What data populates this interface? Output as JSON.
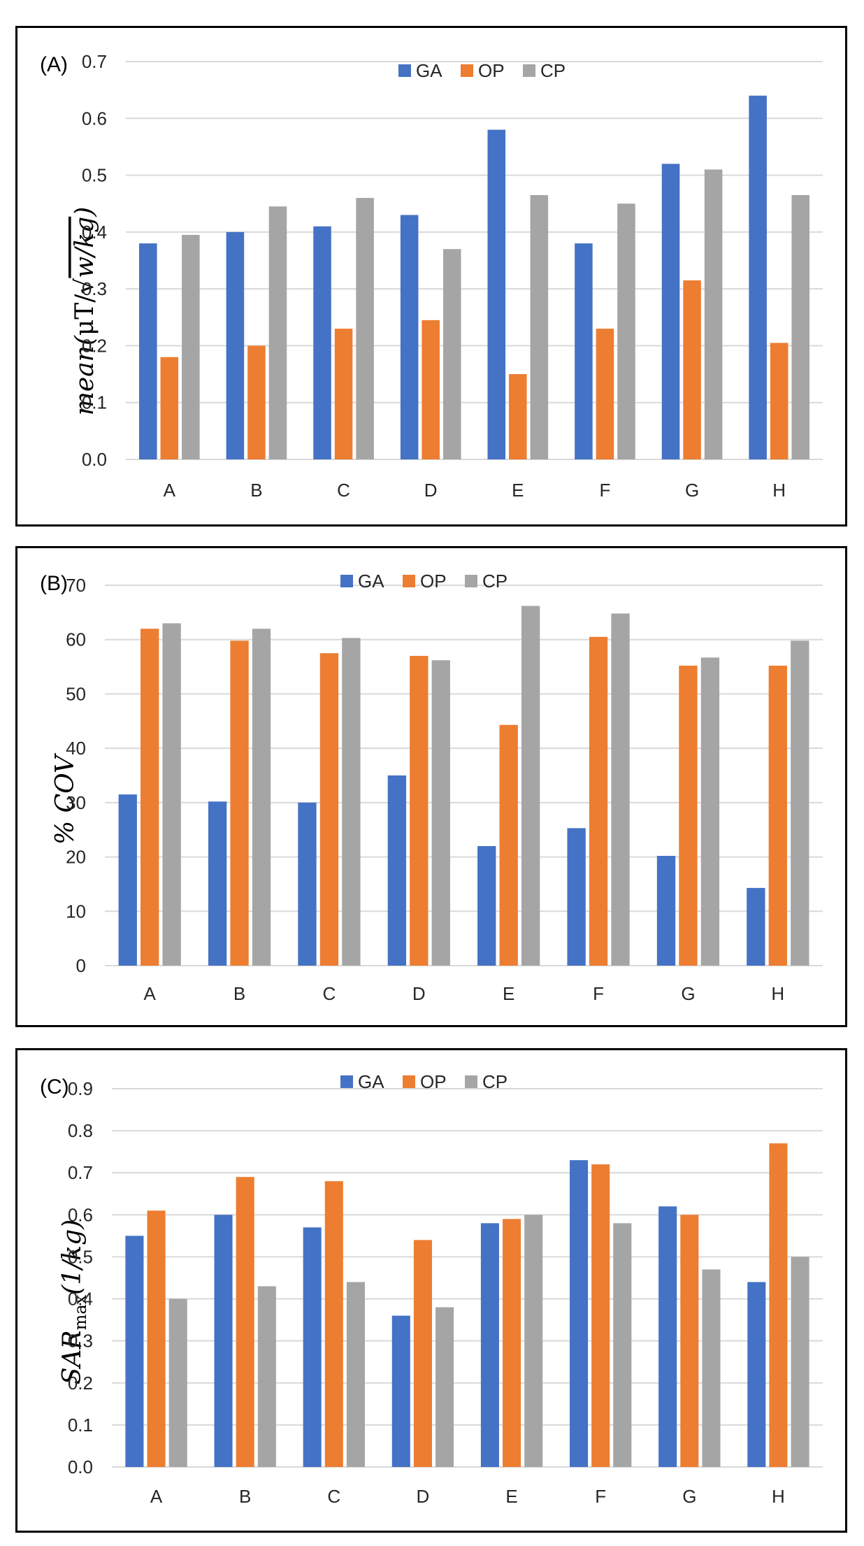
{
  "colors": {
    "GA": "#4472c4",
    "OP": "#ed7d31",
    "CP": "#a5a5a5"
  },
  "chart_data": [
    {
      "type": "bar",
      "panel_label": "(A)",
      "ylabel_prefix": "mean(",
      "ylabel_unit": "μT/",
      "ylabel_root": "w/kg",
      "ylabel_suffix": ")",
      "categories": [
        "A",
        "B",
        "C",
        "D",
        "E",
        "F",
        "G",
        "H"
      ],
      "series": [
        {
          "name": "GA",
          "values": [
            0.38,
            0.4,
            0.41,
            0.43,
            0.58,
            0.38,
            0.52,
            0.64
          ]
        },
        {
          "name": "OP",
          "values": [
            0.18,
            0.2,
            0.23,
            0.245,
            0.15,
            0.23,
            0.315,
            0.205
          ]
        },
        {
          "name": "CP",
          "values": [
            0.395,
            0.445,
            0.46,
            0.37,
            0.465,
            0.45,
            0.51,
            0.465
          ]
        }
      ],
      "ylim": [
        0,
        0.7
      ],
      "yticks": [
        "0.0",
        "0.1",
        "0.2",
        "0.3",
        "0.4",
        "0.5",
        "0.6",
        "0.7"
      ],
      "grid": true,
      "legend": "top"
    },
    {
      "type": "bar",
      "panel_label": "(B)",
      "ylabel": "% COV",
      "categories": [
        "A",
        "B",
        "C",
        "D",
        "E",
        "F",
        "G",
        "H"
      ],
      "series": [
        {
          "name": "GA",
          "values": [
            31.5,
            30.2,
            30,
            35,
            22,
            25.3,
            20.2,
            14.3
          ]
        },
        {
          "name": "OP",
          "values": [
            62,
            59.8,
            57.5,
            57,
            44.3,
            60.5,
            55.2,
            55.2
          ]
        },
        {
          "name": "CP",
          "values": [
            63,
            62,
            60.3,
            56.2,
            66.2,
            64.8,
            56.7,
            59.8
          ]
        }
      ],
      "ylim": [
        0,
        70
      ],
      "yticks": [
        "0",
        "10",
        "20",
        "30",
        "40",
        "50",
        "60",
        "70"
      ],
      "grid": true,
      "legend": "top"
    },
    {
      "type": "bar",
      "panel_label": "(C)",
      "ylabel_main": "SAR",
      "ylabel_sub": "max",
      "ylabel_tail": "(1/kg)",
      "categories": [
        "A",
        "B",
        "C",
        "D",
        "E",
        "F",
        "G",
        "H"
      ],
      "series": [
        {
          "name": "GA",
          "values": [
            0.55,
            0.6,
            0.57,
            0.36,
            0.58,
            0.73,
            0.62,
            0.44
          ]
        },
        {
          "name": "OP",
          "values": [
            0.61,
            0.69,
            0.68,
            0.54,
            0.59,
            0.72,
            0.6,
            0.77
          ]
        },
        {
          "name": "CP",
          "values": [
            0.4,
            0.43,
            0.44,
            0.38,
            0.6,
            0.58,
            0.47,
            0.5
          ]
        }
      ],
      "ylim": [
        0,
        0.9
      ],
      "yticks": [
        "0.0",
        "0.1",
        "0.2",
        "0.3",
        "0.4",
        "0.5",
        "0.6",
        "0.7",
        "0.8",
        "0.9"
      ],
      "grid": true,
      "legend": "top"
    }
  ]
}
